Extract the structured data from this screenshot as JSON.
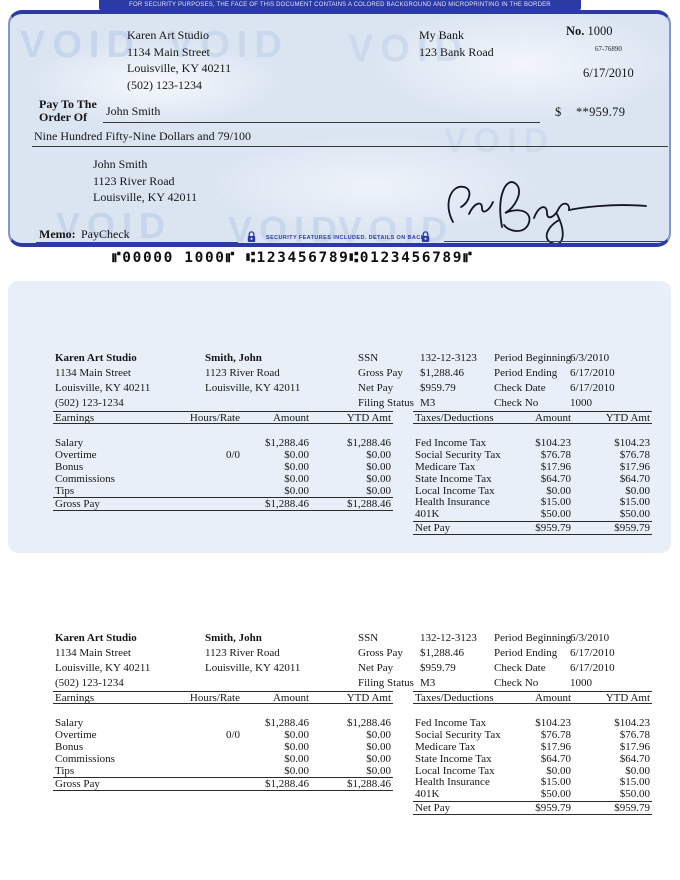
{
  "banner": {
    "text": "FOR SECURITY PURPOSES, THE FACE OF THIS DOCUMENT CONTAINS A COLORED BACKGROUND AND MICROPRINTING IN THE BORDER"
  },
  "check": {
    "company": {
      "name": "Karen Art Studio",
      "address1": "1134 Main Street",
      "address2": "Louisville, KY 40211",
      "phone": "(502) 123-1234"
    },
    "bank": {
      "name": "My Bank",
      "address": "123 Bank Road"
    },
    "number_label": "No.",
    "number": "1000",
    "fraction": "67-76890",
    "date": "6/17/2010",
    "pay_to_line1": "Pay To The",
    "pay_to_line2": "Order Of",
    "payee": "John Smith",
    "currency": "$",
    "amount": "**959.79",
    "amount_words": "Nine Hundred Fifty-Nine Dollars and 79/100",
    "payee_address": {
      "name": "John Smith",
      "address1": "1123 River Road",
      "address2": "Louisville, KY 42011"
    },
    "memo_label": "Memo:",
    "memo": "PayCheck",
    "security_note": "SECURITY FEATURES INCLUDED. DETAILS ON BACK",
    "micr": "⑈00000 1000⑈ ⑆123456789⑆0123456789⑈",
    "watermark": "VOID"
  },
  "stub": {
    "company": {
      "name": "Karen Art Studio",
      "address1": "1134 Main Street",
      "address2": "Louisville, KY 40211",
      "phone": "(502) 123-1234"
    },
    "employee": {
      "name": "Smith, John",
      "address1": "1123 River Road",
      "address2": "Louisville, KY 42011"
    },
    "info_left": [
      {
        "label": "SSN",
        "value": "132-12-3123"
      },
      {
        "label": "Gross Pay",
        "value": "$1,288.46"
      },
      {
        "label": "Net Pay",
        "value": "$959.79"
      },
      {
        "label": "Filing Status",
        "value": "M3"
      }
    ],
    "info_right": [
      {
        "label": "Period Beginning",
        "value": "6/3/2010"
      },
      {
        "label": "Period Ending",
        "value": "6/17/2010"
      },
      {
        "label": "Check Date",
        "value": "6/17/2010"
      },
      {
        "label": "Check No",
        "value": "1000"
      }
    ],
    "earnings": {
      "headers": [
        "Earnings",
        "Hours/Rate",
        "Amount",
        "YTD Amt"
      ],
      "rows": [
        {
          "name": "Salary",
          "hours": "",
          "amount": "$1,288.46",
          "ytd": "$1,288.46"
        },
        {
          "name": "Overtime",
          "hours": "0/0",
          "amount": "$0.00",
          "ytd": "$0.00"
        },
        {
          "name": "Bonus",
          "hours": "",
          "amount": "$0.00",
          "ytd": "$0.00"
        },
        {
          "name": "Commissions",
          "hours": "",
          "amount": "$0.00",
          "ytd": "$0.00"
        },
        {
          "name": "Tips",
          "hours": "",
          "amount": "$0.00",
          "ytd": "$0.00"
        }
      ],
      "total": {
        "name": "Gross Pay",
        "amount": "$1,288.46",
        "ytd": "$1,288.46"
      }
    },
    "taxes": {
      "headers": [
        "Taxes/Deductions",
        "Amount",
        "YTD Amt"
      ],
      "rows": [
        {
          "name": "Fed Income Tax",
          "amount": "$104.23",
          "ytd": "$104.23"
        },
        {
          "name": "Social Security Tax",
          "amount": "$76.78",
          "ytd": "$76.78"
        },
        {
          "name": "Medicare Tax",
          "amount": "$17.96",
          "ytd": "$17.96"
        },
        {
          "name": "State Income Tax",
          "amount": "$64.70",
          "ytd": "$64.70"
        },
        {
          "name": "Local Income Tax",
          "amount": "$0.00",
          "ytd": "$0.00"
        },
        {
          "name": "Health Insurance",
          "amount": "$15.00",
          "ytd": "$15.00"
        },
        {
          "name": "401K",
          "amount": "$50.00",
          "ytd": "$50.00"
        }
      ],
      "total": {
        "name": "Net Pay",
        "amount": "$959.79",
        "ytd": "$959.79"
      }
    }
  }
}
